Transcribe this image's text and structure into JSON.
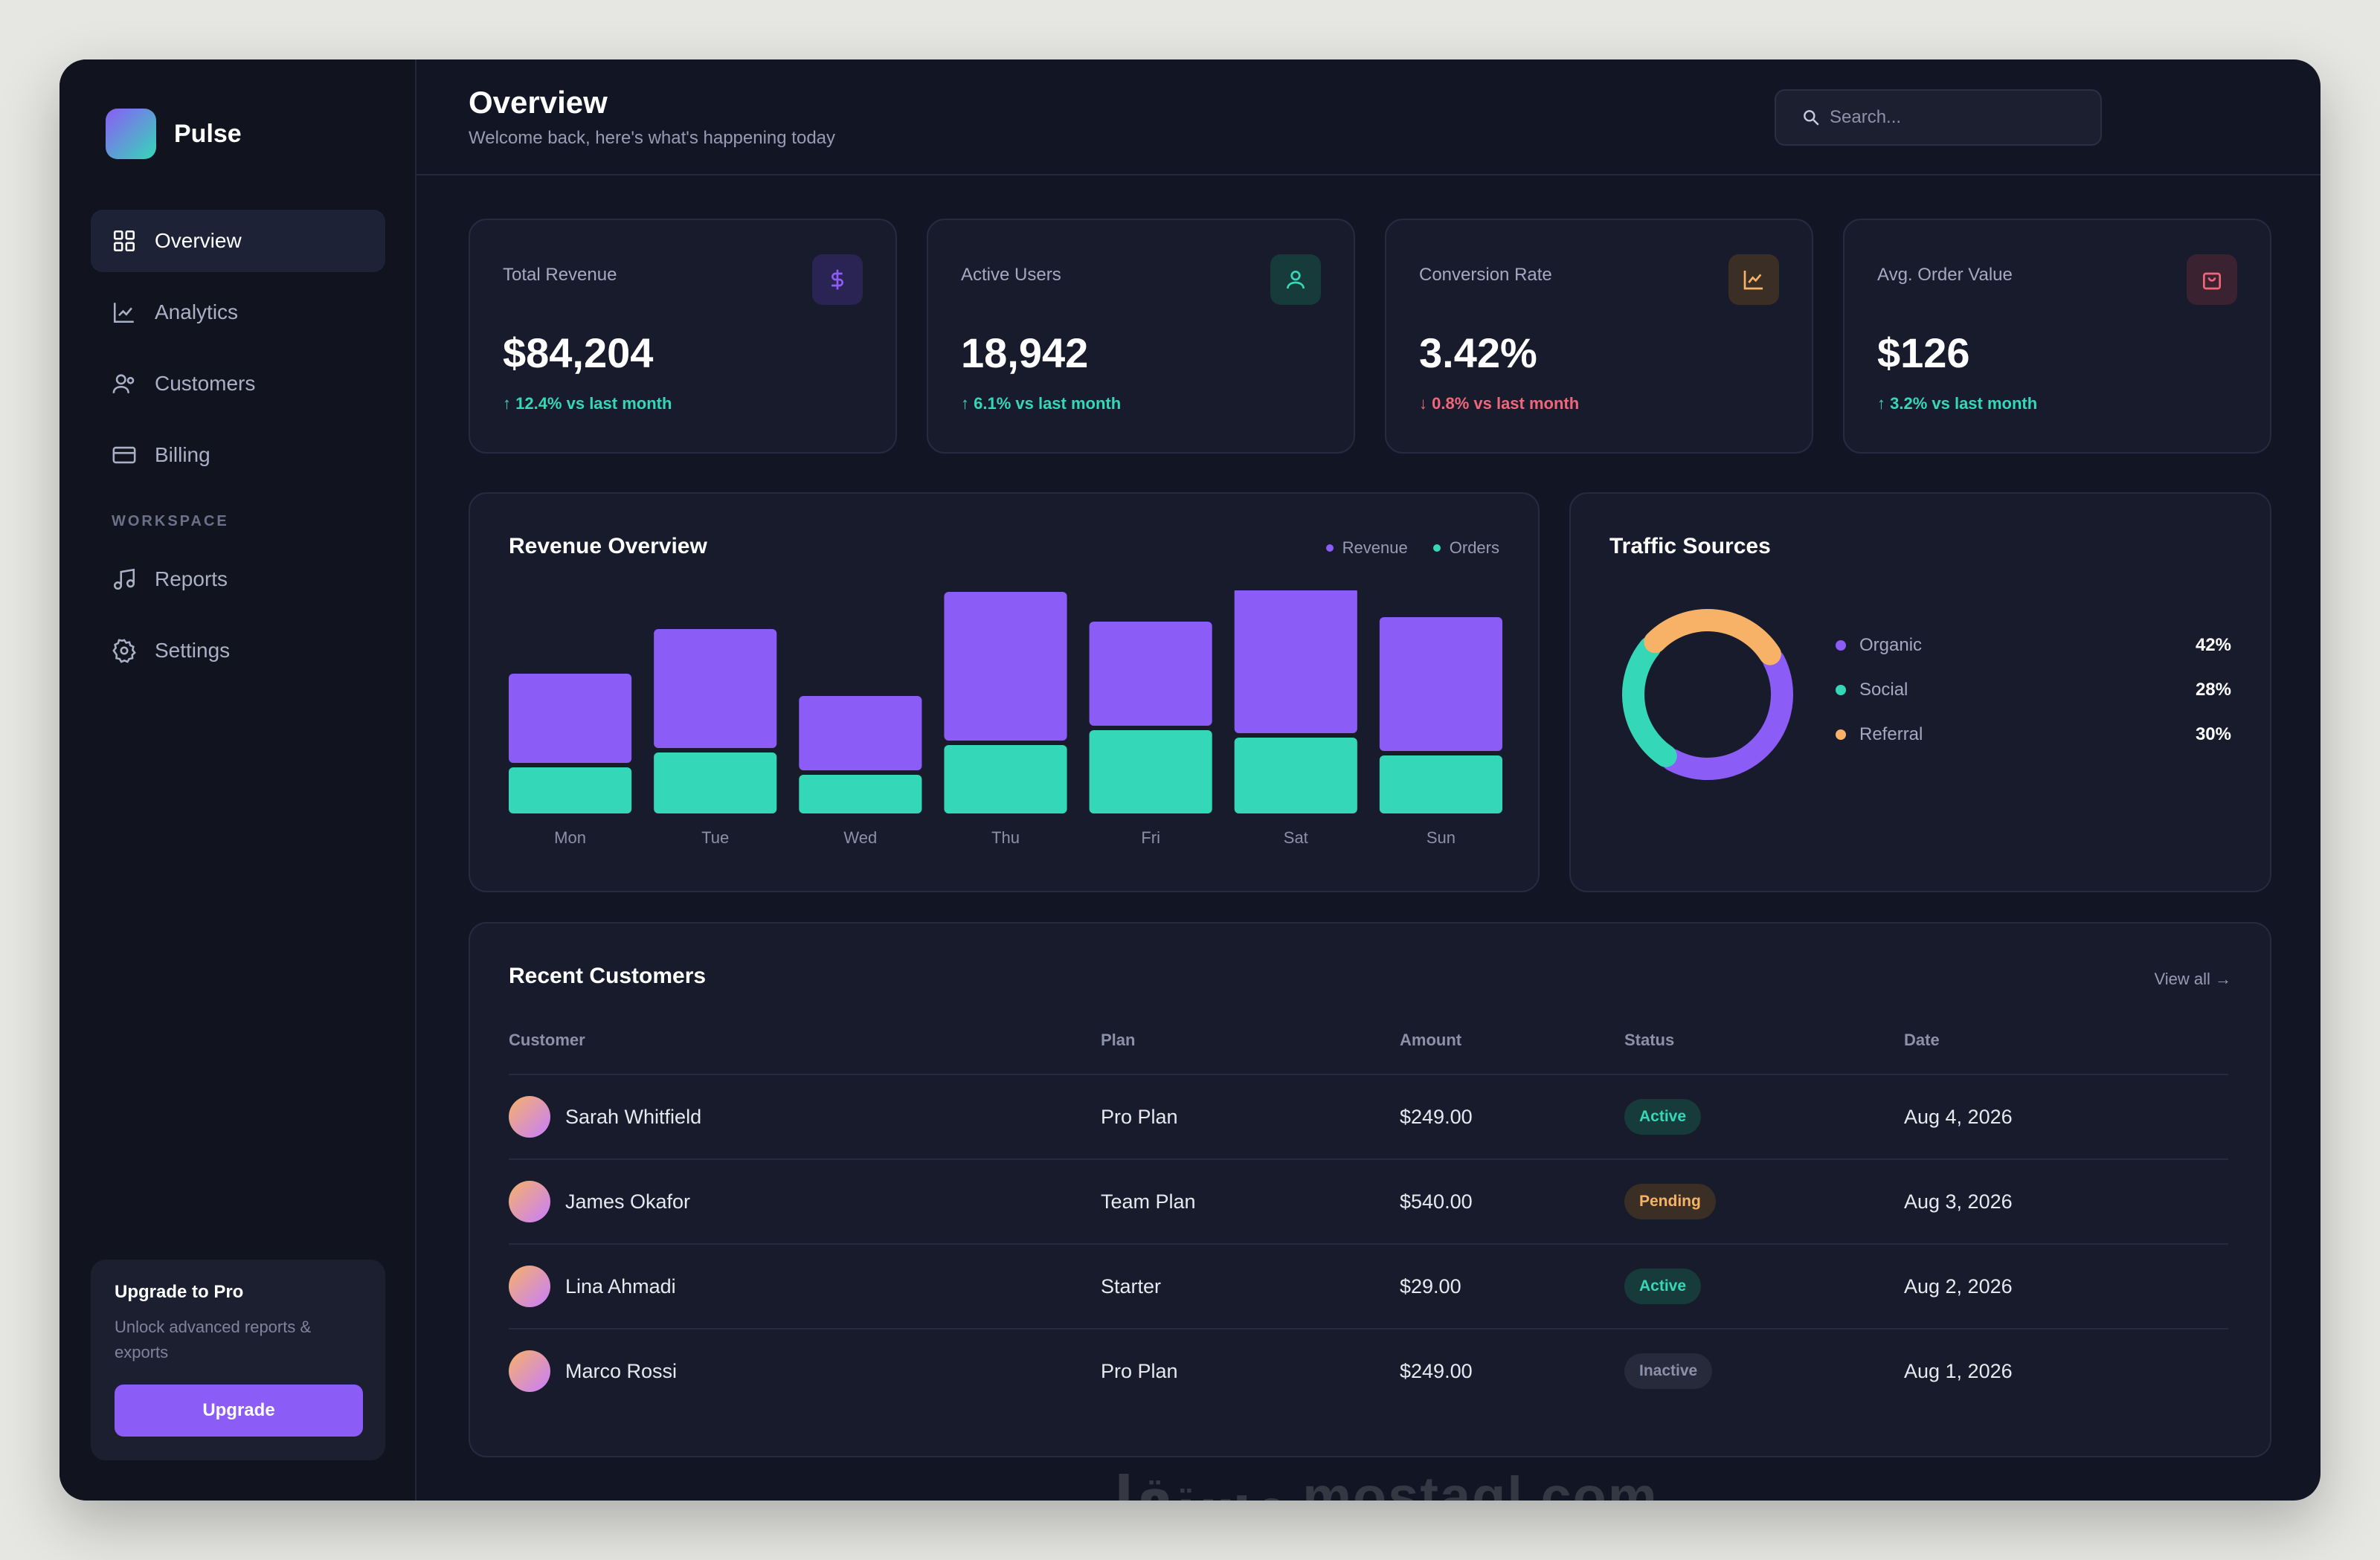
{
  "brand": {
    "name": "Pulse"
  },
  "sidebar": {
    "items": [
      {
        "label": "Overview",
        "icon": "grid-icon",
        "active": true
      },
      {
        "label": "Analytics",
        "icon": "chart-line-icon",
        "active": false
      },
      {
        "label": "Customers",
        "icon": "users-icon",
        "active": false
      },
      {
        "label": "Billing",
        "icon": "credit-card-icon",
        "active": false
      }
    ],
    "section_label": "WORKSPACE",
    "workspace_items": [
      {
        "label": "Reports",
        "icon": "music-note-icon"
      },
      {
        "label": "Settings",
        "icon": "gear-icon"
      }
    ],
    "upgrade": {
      "title": "Upgrade to Pro",
      "subtitle": "Unlock advanced reports & exports",
      "button": "Upgrade"
    }
  },
  "header": {
    "title": "Overview",
    "subtitle": "Welcome back, here's what's happening today",
    "search_placeholder": "Search..."
  },
  "stats": [
    {
      "label": "Total Revenue",
      "value": "$84,204",
      "delta": "↑ 12.4% vs last month",
      "trend": "up",
      "icon": "dollar-icon",
      "accent": "#8b5cf6"
    },
    {
      "label": "Active Users",
      "value": "18,942",
      "delta": "↑ 6.1% vs last month",
      "trend": "up",
      "icon": "user-icon",
      "accent": "#34d8b8"
    },
    {
      "label": "Conversion Rate",
      "value": "3.42%",
      "delta": "↓ 0.8% vs last month",
      "trend": "down",
      "icon": "trend-icon",
      "accent": "#f7b267"
    },
    {
      "label": "Avg. Order Value",
      "value": "$126",
      "delta": "↑ 3.2% vs last month",
      "trend": "up",
      "icon": "shopping-bag-icon",
      "accent": "#f0677b"
    }
  ],
  "revenue_chart": {
    "title": "Revenue Overview",
    "legend": [
      "Revenue",
      "Orders"
    ]
  },
  "chart_data": [
    {
      "type": "bar",
      "stacked": true,
      "title": "Revenue Overview",
      "categories": [
        "Mon",
        "Tue",
        "Wed",
        "Thu",
        "Fri",
        "Sat",
        "Sun"
      ],
      "series": [
        {
          "name": "Orders",
          "values": [
            62,
            82,
            52,
            92,
            112,
            102,
            78
          ],
          "color": "#34d8b8"
        },
        {
          "name": "Revenue",
          "values": [
            120,
            160,
            100,
            200,
            140,
            196,
            180
          ],
          "color": "#8b5cf6"
        }
      ],
      "ylim": [
        0,
        300
      ],
      "grid": false,
      "legend_position": "top-right"
    },
    {
      "type": "pie",
      "donut": true,
      "title": "Traffic Sources",
      "categories": [
        "Organic",
        "Social",
        "Referral"
      ],
      "values": [
        42,
        28,
        30
      ],
      "colors": [
        "#8b5cf6",
        "#34d8b8",
        "#f7b267"
      ]
    }
  ],
  "traffic": {
    "title": "Traffic Sources",
    "rows": [
      {
        "label": "Organic",
        "pct": "42%",
        "color": "#8b5cf6"
      },
      {
        "label": "Social",
        "pct": "28%",
        "color": "#34d8b8"
      },
      {
        "label": "Referral",
        "pct": "30%",
        "color": "#f7b267"
      }
    ]
  },
  "customers": {
    "title": "Recent Customers",
    "view_all": "View all →",
    "columns": [
      "Customer",
      "Plan",
      "Amount",
      "Status",
      "Date"
    ],
    "rows": [
      {
        "name": "Sarah Whitfield",
        "plan": "Pro Plan",
        "amount": "$249.00",
        "status": "Active",
        "status_type": "active",
        "date": "Aug 4, 2026"
      },
      {
        "name": "James Okafor",
        "plan": "Team Plan",
        "amount": "$540.00",
        "status": "Pending",
        "status_type": "pending",
        "date": "Aug 3, 2026"
      },
      {
        "name": "Lina Ahmadi",
        "plan": "Starter",
        "amount": "$29.00",
        "status": "Active",
        "status_type": "active",
        "date": "Aug 2, 2026"
      },
      {
        "name": "Marco Rossi",
        "plan": "Pro Plan",
        "amount": "$249.00",
        "status": "Inactive",
        "status_type": "inactive",
        "date": "Aug 1, 2026"
      }
    ]
  },
  "watermark": "مستقل mostaql.com"
}
